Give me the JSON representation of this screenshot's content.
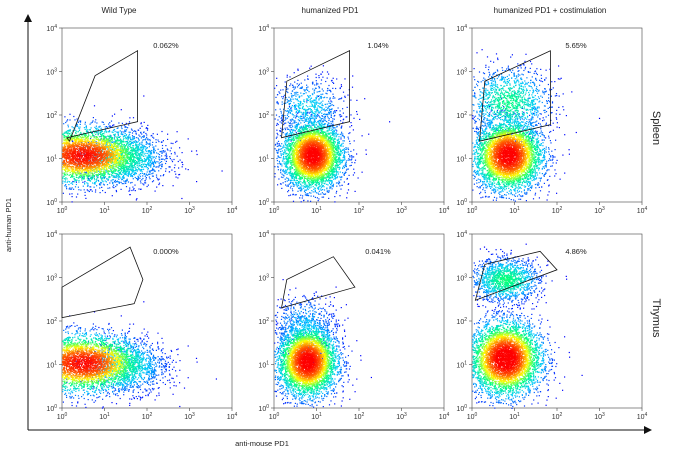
{
  "columns": [
    "Wild Type",
    "humanized PD1",
    "humanized PD1 + costimulation"
  ],
  "rows": [
    "Spleen",
    "Thymus"
  ],
  "x_axis_label": "anti-mouse PD1",
  "y_axis_label": "anti-human PD1",
  "chart_data": {
    "type": "scatter",
    "subtype": "flow-cytometry-density-plot",
    "x_scale": "log",
    "y_scale": "log",
    "xlim": [
      1,
      10000
    ],
    "ylim": [
      1,
      10000
    ],
    "x_ticks": [
      1,
      10,
      100,
      1000,
      10000
    ],
    "y_ticks": [
      1,
      10,
      100,
      1000,
      10000
    ],
    "tick_labels": [
      "10^0",
      "10^1",
      "10^2",
      "10^3",
      "10^4"
    ],
    "xlabel": "anti-mouse PD1",
    "ylabel": "anti-human PD1",
    "colormap": [
      "#0000ff",
      "#00c8ff",
      "#00ff80",
      "#ffff00",
      "#ff6000",
      "#ff0000"
    ],
    "panels": [
      {
        "row": "Spleen",
        "column": "Wild Type",
        "gate_percent": "0.062%",
        "gate_polygon": [
          [
            1.5,
            25
          ],
          [
            6,
            800
          ],
          [
            60,
            3000
          ],
          [
            60,
            70
          ],
          [
            1.3,
            30
          ]
        ],
        "populations": [
          {
            "x": 3,
            "y": 12,
            "sx": 0.75,
            "sy": 0.32,
            "n": 4200
          },
          {
            "x": 25,
            "y": 10,
            "sx": 0.55,
            "sy": 0.3,
            "n": 1200
          }
        ]
      },
      {
        "row": "Spleen",
        "column": "humanized PD1",
        "gate_percent": "1.04%",
        "gate_polygon": [
          [
            1.5,
            30
          ],
          [
            2,
            600
          ],
          [
            60,
            3000
          ],
          [
            60,
            70
          ],
          [
            1.5,
            30
          ]
        ],
        "populations": [
          {
            "x": 8,
            "y": 12,
            "sx": 0.35,
            "sy": 0.38,
            "n": 4500
          },
          {
            "x": 6,
            "y": 150,
            "sx": 0.45,
            "sy": 0.35,
            "n": 700
          }
        ]
      },
      {
        "row": "Spleen",
        "column": "humanized PD1 + costimulation",
        "gate_percent": "5.65%",
        "gate_polygon": [
          [
            1.5,
            25
          ],
          [
            2,
            600
          ],
          [
            70,
            3000
          ],
          [
            70,
            60
          ],
          [
            1.5,
            25
          ]
        ],
        "populations": [
          {
            "x": 7,
            "y": 12,
            "sx": 0.4,
            "sy": 0.4,
            "n": 4500
          },
          {
            "x": 7,
            "y": 200,
            "sx": 0.5,
            "sy": 0.4,
            "n": 1300
          }
        ]
      },
      {
        "row": "Thymus",
        "column": "Wild Type",
        "gate_percent": "0.000%",
        "gate_polygon": [
          [
            1,
            600
          ],
          [
            40,
            5000
          ],
          [
            80,
            900
          ],
          [
            50,
            250
          ],
          [
            1,
            120
          ]
        ],
        "populations": [
          {
            "x": 3,
            "y": 11,
            "sx": 0.75,
            "sy": 0.33,
            "n": 4200
          },
          {
            "x": 30,
            "y": 9,
            "sx": 0.5,
            "sy": 0.3,
            "n": 1000
          }
        ]
      },
      {
        "row": "Thymus",
        "column": "humanized PD1",
        "gate_percent": "0.041%",
        "gate_polygon": [
          [
            1.5,
            200
          ],
          [
            2,
            900
          ],
          [
            25,
            3000
          ],
          [
            80,
            600
          ],
          [
            1.5,
            200
          ]
        ],
        "populations": [
          {
            "x": 6,
            "y": 12,
            "sx": 0.35,
            "sy": 0.4,
            "n": 4500
          },
          {
            "x": 5,
            "y": 80,
            "sx": 0.4,
            "sy": 0.35,
            "n": 600
          }
        ]
      },
      {
        "row": "Thymus",
        "column": "humanized PD1 + costimulation",
        "gate_percent": "4.86%",
        "gate_polygon": [
          [
            1.2,
            300
          ],
          [
            2,
            2000
          ],
          [
            40,
            4000
          ],
          [
            100,
            1500
          ],
          [
            1.2,
            300
          ]
        ],
        "populations": [
          {
            "x": 6,
            "y": 14,
            "sx": 0.42,
            "sy": 0.42,
            "n": 4800
          },
          {
            "x": 6,
            "y": 900,
            "sx": 0.4,
            "sy": 0.25,
            "n": 1400
          }
        ]
      }
    ]
  }
}
